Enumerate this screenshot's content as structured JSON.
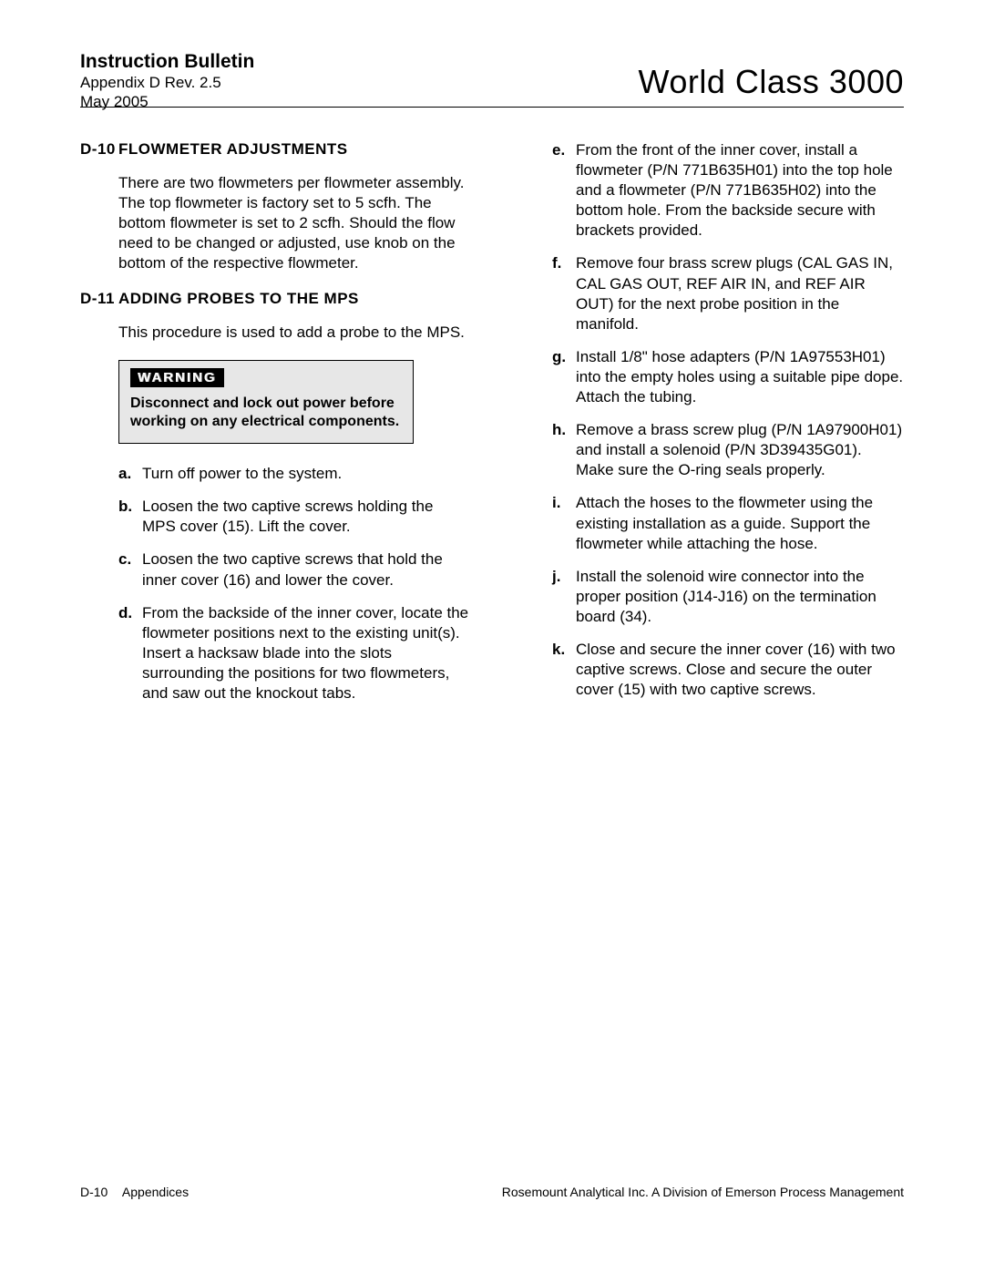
{
  "header": {
    "title": "Instruction Bulletin",
    "sub1": "Appendix D  Rev. 2.5",
    "sub2": "May 2005",
    "product": "World Class 3000"
  },
  "left": {
    "sec1": {
      "num": "D-10",
      "title": "FLOWMETER  ADJUSTMENTS"
    },
    "para1": "There are two flowmeters per flowmeter assembly. The top flowmeter is factory set to 5 scfh. The bottom flowmeter is set to 2 scfh. Should the flow need to be changed or adjusted, use knob on the bottom of the respective flowmeter.",
    "sec2": {
      "num": "D-11",
      "title": "ADDING  PROBES  TO  THE  MPS"
    },
    "para2": "This procedure is used to add a probe to the MPS.",
    "warning": {
      "label": "WARNING",
      "text": "Disconnect and lock out power before working on any electrical components."
    },
    "steps": [
      {
        "l": "a.",
        "t": "Turn off power to the system."
      },
      {
        "l": "b.",
        "t": "Loosen the two captive screws holding the MPS cover (15). Lift the cover."
      },
      {
        "l": "c.",
        "t": "Loosen the two captive screws that hold the inner cover (16) and lower the cover."
      },
      {
        "l": "d.",
        "t": "From the backside of the inner cover, locate the flowmeter positions next to the existing unit(s). Insert a hacksaw blade into the slots surrounding the positions for two flowmeters, and saw out the knockout tabs."
      }
    ]
  },
  "right": {
    "steps": [
      {
        "l": "e.",
        "t": "From the front of the inner cover, install a flowmeter (P/N 771B635H01) into the top hole and a flowmeter (P/N 771B635H02) into the bottom hole. From the backside secure with brackets provided."
      },
      {
        "l": "f.",
        "t": "Remove four brass screw plugs (CAL GAS IN, CAL GAS OUT, REF AIR IN, and REF AIR OUT) for the next probe position in the manifold."
      },
      {
        "l": "g.",
        "t": "Install 1/8\" hose adapters (P/N 1A97553H01) into the empty holes using a suitable pipe dope. Attach the tubing."
      },
      {
        "l": "h.",
        "t": "Remove a brass screw plug (P/N 1A97900H01) and install a solenoid (P/N 3D39435G01). Make sure the O-ring seals properly."
      },
      {
        "l": "i.",
        "t": "Attach the hoses to the flowmeter using the existing installation as a guide. Support the flowmeter while attaching the hose."
      },
      {
        "l": "j.",
        "t": "Install the solenoid wire connector into the proper position (J14-J16) on the termination board (34)."
      },
      {
        "l": "k.",
        "t": "Close and secure the inner cover (16) with two captive screws. Close and secure the outer cover (15) with two captive screws."
      }
    ]
  },
  "footer": {
    "left_page": "D-10",
    "left_label": "Appendices",
    "right": "Rosemount Analytical Inc.    A Division of Emerson Process Management"
  }
}
